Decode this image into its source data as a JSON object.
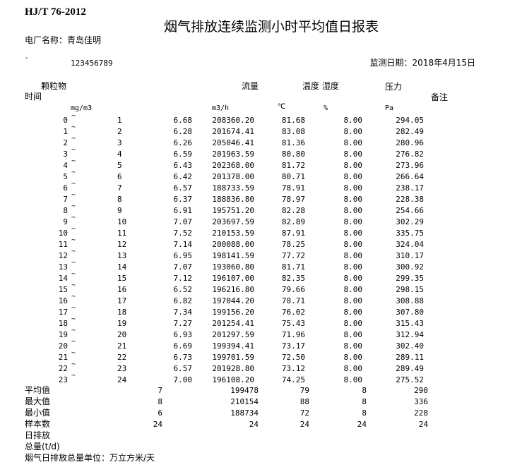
{
  "header": {
    "standard": "HJ/T 76-2012",
    "title": "烟气排放连续监测小时平均值日报表",
    "plant_label": "电厂名称：青岛佳明",
    "mark": "`",
    "code": "123456789",
    "date_label": "监测日期：2018年4月15日"
  },
  "columns": {
    "particulate": "颗粒物",
    "flow": "流量",
    "temp_humidity": "温度 湿度",
    "pressure": "压力",
    "time": "时间",
    "remarks": "备注",
    "unit_particulate": "mg/m3",
    "unit_flow": "m3/h",
    "unit_temp": "℃",
    "unit_humidity": "%",
    "unit_pressure": "Pa"
  },
  "tilde": "~",
  "rows": [
    [
      "0",
      "1",
      "6.68",
      "208360.20",
      "81.68",
      "8.00",
      "294.05"
    ],
    [
      "1",
      "2",
      "6.28",
      "201674.41",
      "83.08",
      "8.00",
      "282.49"
    ],
    [
      "2",
      "3",
      "6.26",
      "205046.41",
      "81.36",
      "8.00",
      "280.96"
    ],
    [
      "3",
      "4",
      "6.59",
      "201963.59",
      "80.80",
      "8.00",
      "276.82"
    ],
    [
      "4",
      "5",
      "6.43",
      "202368.00",
      "81.72",
      "8.00",
      "273.96"
    ],
    [
      "5",
      "6",
      "6.42",
      "201378.00",
      "80.71",
      "8.00",
      "266.64"
    ],
    [
      "6",
      "7",
      "6.57",
      "188733.59",
      "78.91",
      "8.00",
      "238.17"
    ],
    [
      "7",
      "8",
      "6.37",
      "188836.80",
      "78.97",
      "8.00",
      "228.38"
    ],
    [
      "8",
      "9",
      "6.91",
      "195751.20",
      "82.28",
      "8.00",
      "254.66"
    ],
    [
      "9",
      "10",
      "7.07",
      "203697.59",
      "82.89",
      "8.00",
      "302.29"
    ],
    [
      "10",
      "11",
      "7.52",
      "210153.59",
      "87.91",
      "8.00",
      "335.75"
    ],
    [
      "11",
      "12",
      "7.14",
      "200088.00",
      "78.25",
      "8.00",
      "324.04"
    ],
    [
      "12",
      "13",
      "6.95",
      "198141.59",
      "77.72",
      "8.00",
      "310.17"
    ],
    [
      "13",
      "14",
      "7.07",
      "193060.80",
      "81.71",
      "8.00",
      "300.92"
    ],
    [
      "14",
      "15",
      "7.12",
      "196107.00",
      "82.35",
      "8.00",
      "299.35"
    ],
    [
      "15",
      "16",
      "6.52",
      "196216.80",
      "79.66",
      "8.00",
      "298.15"
    ],
    [
      "16",
      "17",
      "6.82",
      "197044.20",
      "78.71",
      "8.00",
      "308.88"
    ],
    [
      "17",
      "18",
      "7.34",
      "199156.20",
      "76.02",
      "8.00",
      "307.80"
    ],
    [
      "18",
      "19",
      "7.27",
      "201254.41",
      "75.43",
      "8.00",
      "315.43"
    ],
    [
      "19",
      "20",
      "6.93",
      "201297.59",
      "71.96",
      "8.00",
      "312.94"
    ],
    [
      "20",
      "21",
      "6.69",
      "199394.41",
      "73.17",
      "8.00",
      "302.40"
    ],
    [
      "21",
      "22",
      "6.73",
      "199701.59",
      "72.50",
      "8.00",
      "289.11"
    ],
    [
      "22",
      "23",
      "6.57",
      "201928.80",
      "73.12",
      "8.00",
      "289.49"
    ],
    [
      "23",
      "24",
      "7.00",
      "196108.20",
      "74.25",
      "8.00",
      "275.52"
    ]
  ],
  "summary": [
    {
      "label": "平均值",
      "values": [
        "7",
        "199478",
        "79",
        "8",
        "290"
      ]
    },
    {
      "label": "最大值",
      "values": [
        "8",
        "210154",
        "88",
        "8",
        "336"
      ]
    },
    {
      "label": "最小值",
      "values": [
        "6",
        "188734",
        "72",
        "8",
        "228"
      ]
    },
    {
      "label": "样本数",
      "values": [
        "24",
        "24",
        "24",
        "24",
        "24"
      ]
    }
  ],
  "footer": {
    "daily_emission_1": "日排放",
    "daily_emission_2": "总量(t/d)",
    "unit_note": "烟气日排放总量单位：万立方米/天"
  }
}
